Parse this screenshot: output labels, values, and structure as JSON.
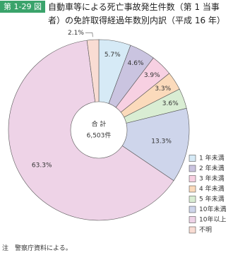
{
  "figure_label": "第 1-29 図",
  "chart_data": {
    "type": "donut",
    "title": "自動車等による死亡事故発生件数（第 1 当事者）の免許取得経過年数別内訳（平成 16 年）",
    "center_label": "合 計",
    "center_value": "6,503件",
    "categories": [
      "1 年未満",
      "2 年未満",
      "3 年未満",
      "4 年未満",
      "5 年未満",
      "10年未満",
      "10年以上",
      "不明"
    ],
    "values": [
      5.7,
      4.6,
      3.9,
      3.3,
      3.6,
      13.3,
      63.3,
      2.1
    ],
    "value_labels": [
      "5.7%",
      "4.6%",
      "3.9%",
      "3.3%",
      "3.6%",
      "13.3%",
      "63.3%",
      "2.1%"
    ],
    "colors": [
      "#d6eaf6",
      "#cac4e0",
      "#f7d0e2",
      "#fbdabb",
      "#d9edd3",
      "#ced5eb",
      "#eed3e7",
      "#f9dcd3"
    ]
  },
  "note": "注　警察庁資料による。"
}
